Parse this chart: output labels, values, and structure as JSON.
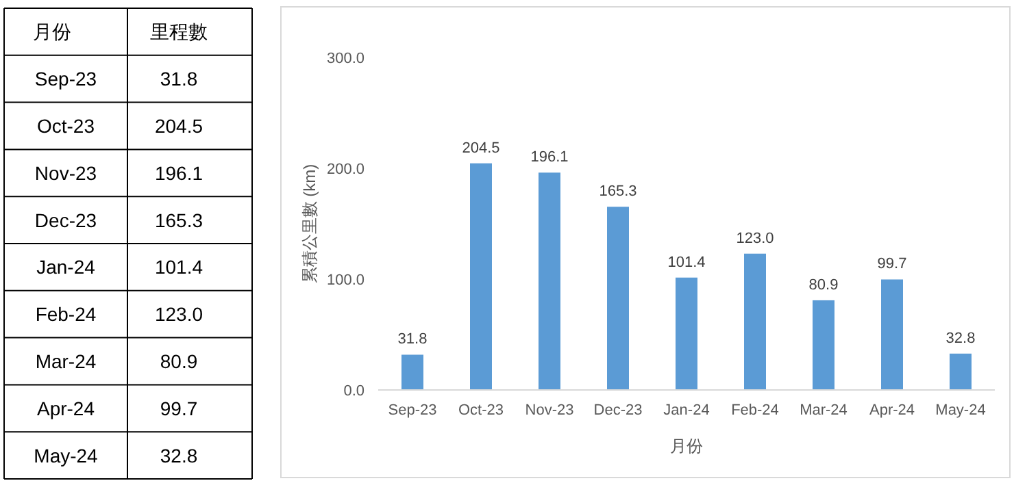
{
  "chart_data": {
    "type": "bar",
    "xlabel": "月份",
    "ylabel": "累積公里數 (km)",
    "categories": [
      "Sep-23",
      "Oct-23",
      "Nov-23",
      "Dec-23",
      "Jan-24",
      "Feb-24",
      "Mar-24",
      "Apr-24",
      "May-24"
    ],
    "values": [
      31.8,
      204.5,
      196.1,
      165.3,
      101.4,
      123.0,
      80.9,
      99.7,
      32.8
    ],
    "color": "#5b9bd5",
    "ylim": [
      0,
      300
    ],
    "yticks": [
      {
        "value": 0,
        "label": "0.0"
      },
      {
        "value": 100,
        "label": "100.0"
      },
      {
        "value": 200,
        "label": "200.0"
      },
      {
        "value": 300,
        "label": "300.0"
      }
    ],
    "value_labels": [
      "31.8",
      "204.5",
      "196.1",
      "165.3",
      "101.4",
      "123.0",
      "80.9",
      "99.7",
      "32.8"
    ],
    "grid": false,
    "annotations": [
      "里程數"
    ]
  }
}
